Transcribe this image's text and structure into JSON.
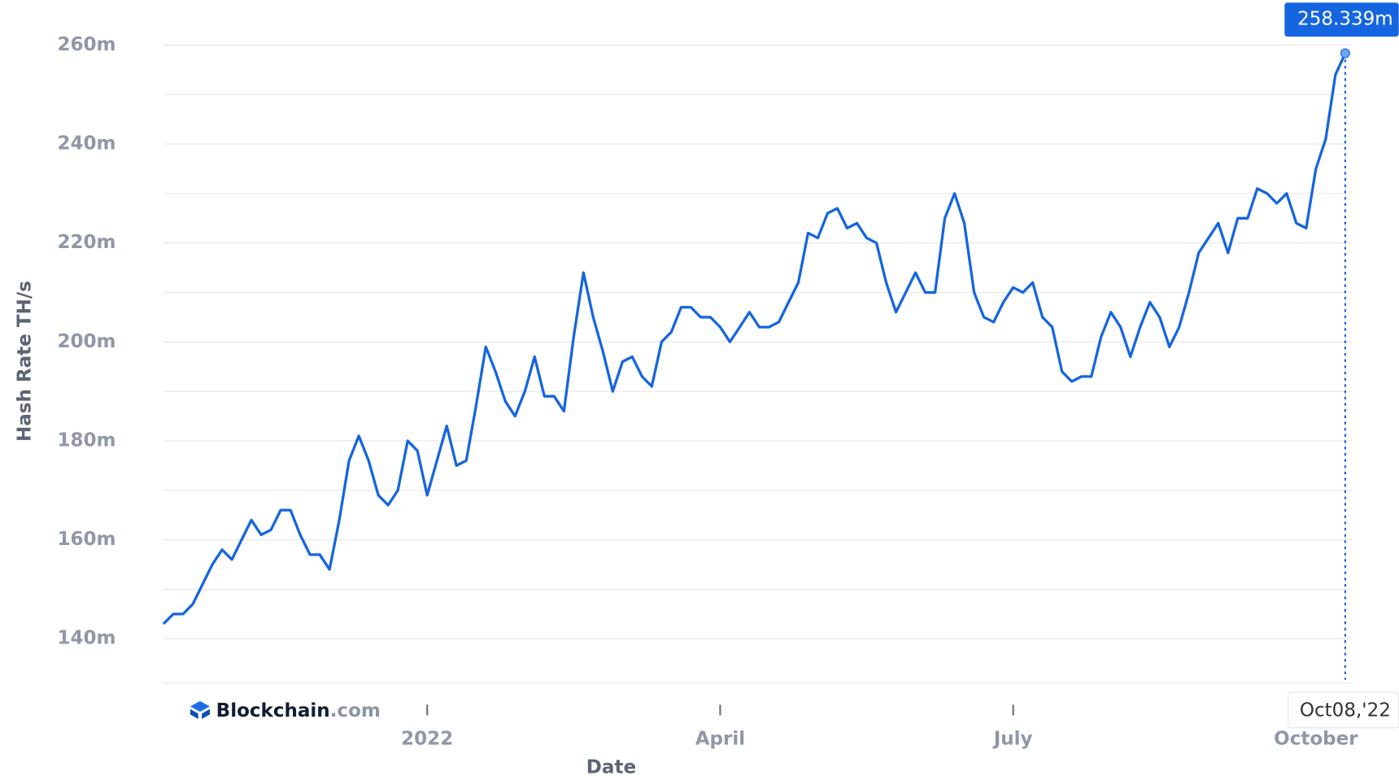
{
  "chart_data": {
    "type": "line",
    "y_label": "Hash Rate TH/s",
    "x_label": "Date",
    "brand": {
      "name": "Blockchain",
      "suffix": ".com"
    },
    "color": "#1565e0",
    "categories": [
      null,
      null,
      null,
      null,
      null,
      null,
      null,
      null,
      null,
      null,
      null,
      null,
      null,
      null,
      null,
      null,
      null,
      null,
      null,
      null,
      null,
      null,
      null,
      null,
      null,
      null,
      null,
      "2022",
      null,
      null,
      null,
      null,
      null,
      null,
      null,
      null,
      null,
      null,
      null,
      null,
      null,
      null,
      null,
      null,
      null,
      null,
      null,
      null,
      null,
      null,
      null,
      null,
      null,
      null,
      null,
      null,
      null,
      "April",
      null,
      null,
      null,
      null,
      null,
      null,
      null,
      null,
      null,
      null,
      null,
      null,
      null,
      null,
      null,
      null,
      null,
      null,
      null,
      null,
      null,
      null,
      null,
      null,
      null,
      null,
      null,
      null,
      null,
      "July",
      null,
      null,
      null,
      null,
      null,
      null,
      null,
      null,
      null,
      null,
      null,
      null,
      null,
      null,
      null,
      null,
      null,
      null,
      null,
      null,
      null,
      null,
      null,
      null,
      null,
      null,
      null,
      null,
      null,
      null,
      "October",
      null,
      null,
      null
    ],
    "values": [
      143,
      145,
      145,
      147,
      151,
      155,
      158,
      156,
      160,
      164,
      161,
      162,
      166,
      166,
      161,
      157,
      157,
      154,
      164,
      176,
      181,
      176,
      169,
      167,
      170,
      180,
      178,
      169,
      176,
      183,
      175,
      176,
      187,
      199,
      194,
      188,
      185,
      190,
      197,
      189,
      189,
      186,
      201,
      214,
      205,
      198,
      190,
      196,
      197,
      193,
      191,
      200,
      202,
      207,
      207,
      205,
      205,
      203,
      200,
      203,
      206,
      203,
      203,
      204,
      208,
      212,
      222,
      221,
      226,
      227,
      223,
      224,
      221,
      220,
      212,
      206,
      210,
      214,
      210,
      210,
      225,
      230,
      224,
      210,
      205,
      204,
      208,
      211,
      210,
      212,
      205,
      203,
      194,
      192,
      193,
      193,
      201,
      206,
      203,
      197,
      203,
      208,
      205,
      199,
      203,
      210,
      218,
      221,
      224,
      218,
      225,
      225,
      231,
      230,
      228,
      230,
      224,
      223,
      235,
      241,
      254,
      258.339
    ],
    "highlight": {
      "label": "258.339m",
      "date": "Oct08,'22"
    },
    "ylim": [
      131,
      261
    ],
    "yticks": [
      {
        "value": 140,
        "label": "140m"
      },
      {
        "value": 160,
        "label": "160m"
      },
      {
        "value": 180,
        "label": "180m"
      },
      {
        "value": 200,
        "label": "200m"
      },
      {
        "value": 220,
        "label": "220m"
      },
      {
        "value": 240,
        "label": "240m"
      },
      {
        "value": 260,
        "label": "260m"
      }
    ],
    "minor_grid": [
      150,
      170,
      190,
      210,
      230,
      250
    ],
    "grid": true
  }
}
